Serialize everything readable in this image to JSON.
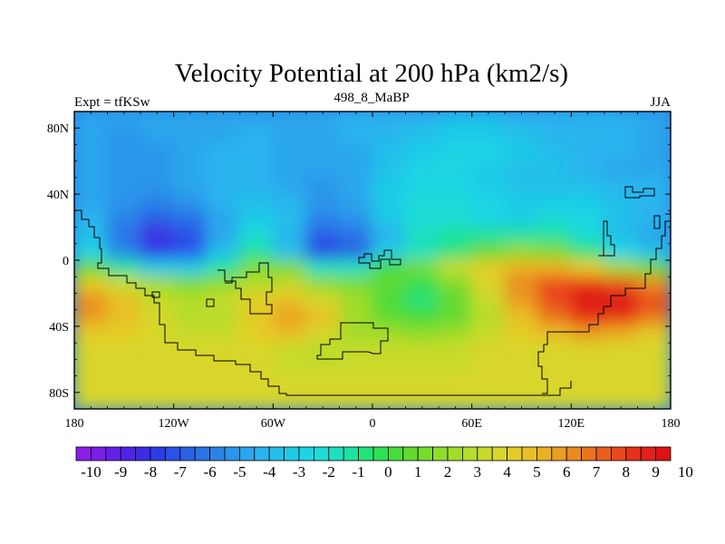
{
  "chart_data": {
    "type": "heatmap",
    "title": "Velocity Potential at 200 hPa (km2/s)",
    "left_label": "Expt = tfKSw",
    "center_label": "498_8_MaBP",
    "right_label": "JJA",
    "x_ticks": [
      "180",
      "120W",
      "60W",
      "0",
      "60E",
      "120E",
      "180"
    ],
    "y_ticks": [
      "80N",
      "40N",
      "0",
      "40S",
      "80S"
    ],
    "x_tick_lon": [
      -180,
      -120,
      -60,
      0,
      60,
      120,
      180
    ],
    "y_tick_lat": [
      80,
      40,
      0,
      -40,
      -80
    ],
    "xlim": [
      -180,
      180
    ],
    "ylim": [
      -90,
      90
    ],
    "colorbar": {
      "levels": [
        -10,
        -9.5,
        -9,
        -8.5,
        -8,
        -7.5,
        -7,
        -6.5,
        -6,
        -5.5,
        -5,
        -4.5,
        -4,
        -3.5,
        -3,
        -2.5,
        -2,
        -1.5,
        -1,
        -0.5,
        0,
        0.5,
        1,
        1.5,
        2,
        2.5,
        3,
        3.5,
        4,
        4.5,
        5,
        5.5,
        6,
        6.5,
        7,
        7.5,
        8,
        8.5,
        9,
        9.5,
        10
      ],
      "labels": [
        "-10",
        "-9",
        "-8",
        "-7",
        "-6",
        "-5",
        "-4",
        "-3",
        "-2",
        "-1",
        "0",
        "1",
        "2",
        "3",
        "4",
        "5",
        "6",
        "7",
        "8",
        "9",
        "10"
      ],
      "colors": [
        "#8b1ee6",
        "#7a1ee8",
        "#6420e8",
        "#4f24e6",
        "#3c2be4",
        "#2d3ce6",
        "#2a51e8",
        "#2a62e6",
        "#2a73e6",
        "#2a84e8",
        "#2a95ea",
        "#2aa6ec",
        "#2ab4ee",
        "#22c0ea",
        "#1ecbe6",
        "#1ed4e4",
        "#1edcd8",
        "#1ee0c0",
        "#1ee2a0",
        "#22e27a",
        "#2ee054",
        "#46dc3a",
        "#62da30",
        "#78dc2e",
        "#8edc2c",
        "#a2dc2c",
        "#b6dc2c",
        "#c8da2c",
        "#d8d62a",
        "#e4cc28",
        "#e8c026",
        "#eab024",
        "#ea9e22",
        "#ea8a20",
        "#ea741e",
        "#ea5e1c",
        "#ea481a",
        "#e63218",
        "#e22018",
        "#dc1216"
      ]
    },
    "field": {
      "lat_centers": [
        85,
        75,
        65,
        55,
        45,
        35,
        25,
        15,
        5,
        -5,
        -15,
        -25,
        -35,
        -45,
        -55,
        -65,
        -75,
        -85
      ],
      "lon_centers": [
        -170,
        -150,
        -130,
        -110,
        -90,
        -70,
        -50,
        -30,
        -10,
        10,
        30,
        50,
        70,
        90,
        110,
        130,
        150,
        170
      ],
      "values": [
        [
          -4.5,
          -4.5,
          -4.5,
          -4.5,
          -4.5,
          -4.5,
          -4.5,
          -4.5,
          -4.0,
          -4.0,
          -4.0,
          -3.5,
          -3.5,
          -4.0,
          -4.0,
          -4.0,
          -4.0,
          -4.5
        ],
        [
          -4.5,
          -5.0,
          -4.5,
          -4.5,
          -4.5,
          -4.0,
          -4.5,
          -4.5,
          -4.0,
          -4.0,
          -3.5,
          -3.0,
          -3.0,
          -3.5,
          -4.0,
          -4.0,
          -4.0,
          -4.5
        ],
        [
          -4.5,
          -5.0,
          -5.0,
          -4.5,
          -4.0,
          -4.0,
          -4.5,
          -4.5,
          -4.5,
          -3.5,
          -3.0,
          -2.5,
          -2.5,
          -3.0,
          -3.5,
          -4.0,
          -4.0,
          -4.5
        ],
        [
          -4.5,
          -5.0,
          -5.0,
          -4.5,
          -4.0,
          -4.0,
          -4.5,
          -4.5,
          -4.5,
          -3.5,
          -2.5,
          -2.5,
          -3.0,
          -3.5,
          -3.5,
          -4.0,
          -4.5,
          -4.5
        ],
        [
          -4.5,
          -5.0,
          -5.0,
          -4.5,
          -4.0,
          -4.0,
          -4.5,
          -5.0,
          -4.5,
          -3.0,
          -2.5,
          -2.5,
          -3.0,
          -3.5,
          -3.5,
          -3.5,
          -4.0,
          -4.0
        ],
        [
          -4.5,
          -5.0,
          -5.5,
          -5.0,
          -4.0,
          -3.5,
          -4.0,
          -5.0,
          -4.5,
          -3.0,
          -2.0,
          -2.0,
          -2.5,
          -3.0,
          -3.0,
          -3.0,
          -3.5,
          -4.0
        ],
        [
          -4.0,
          -5.5,
          -6.5,
          -6.0,
          -4.5,
          -3.0,
          -3.5,
          -5.5,
          -5.0,
          -3.0,
          -2.0,
          -2.0,
          -2.5,
          -3.0,
          -2.0,
          -2.5,
          -3.5,
          -4.0
        ],
        [
          -3.5,
          -6.0,
          -8.0,
          -7.0,
          -4.5,
          -2.0,
          -4.0,
          -6.5,
          -6.0,
          -4.0,
          -1.5,
          -1.0,
          -1.0,
          -1.0,
          -1.0,
          -2.0,
          -3.5,
          -4.5
        ],
        [
          -2.5,
          -5.5,
          -7.5,
          -7.0,
          -3.5,
          -1.0,
          -3.5,
          -7.5,
          -6.5,
          -3.0,
          -1.5,
          -0.5,
          1.0,
          2.0,
          1.5,
          -0.5,
          -2.5,
          -3.5
        ],
        [
          1.0,
          -1.0,
          -3.0,
          -3.0,
          -1.0,
          1.5,
          1.5,
          -1.5,
          -1.5,
          0.5,
          1.5,
          3.5,
          4.5,
          5.5,
          5.5,
          4.5,
          2.5,
          1.0
        ],
        [
          4.5,
          3.5,
          2.5,
          1.5,
          2.0,
          3.0,
          3.5,
          2.0,
          1.5,
          1.0,
          0.0,
          1.5,
          4.0,
          6.5,
          8.0,
          8.5,
          8.0,
          6.5
        ],
        [
          6.5,
          5.0,
          3.5,
          3.0,
          3.5,
          4.5,
          5.0,
          4.0,
          2.5,
          0.5,
          -0.5,
          1.0,
          3.5,
          6.0,
          8.0,
          9.5,
          9.5,
          8.0
        ],
        [
          6.0,
          5.0,
          4.0,
          3.0,
          3.0,
          4.5,
          6.0,
          5.0,
          2.5,
          1.0,
          0.5,
          1.0,
          3.0,
          5.0,
          7.0,
          8.5,
          8.5,
          7.0
        ],
        [
          4.5,
          4.5,
          4.0,
          3.5,
          3.5,
          4.5,
          5.0,
          4.0,
          2.5,
          2.5,
          2.0,
          2.5,
          3.5,
          4.5,
          5.0,
          6.0,
          5.5,
          4.5
        ],
        [
          4.0,
          4.0,
          4.0,
          4.0,
          4.0,
          4.0,
          3.5,
          3.0,
          3.5,
          3.5,
          3.5,
          3.5,
          4.0,
          4.0,
          4.0,
          4.0,
          4.0,
          4.0
        ],
        [
          4.0,
          4.0,
          4.0,
          4.0,
          4.0,
          4.0,
          3.5,
          3.5,
          3.5,
          3.5,
          3.5,
          3.5,
          4.0,
          4.0,
          4.0,
          4.0,
          4.0,
          4.0
        ],
        [
          4.0,
          4.0,
          4.0,
          4.0,
          4.0,
          4.0,
          4.0,
          4.0,
          4.0,
          4.0,
          4.0,
          4.0,
          4.0,
          4.0,
          4.0,
          4.0,
          4.0,
          4.0
        ],
        [
          4.0,
          4.0,
          4.0,
          4.0,
          4.0,
          4.0,
          4.0,
          4.0,
          4.0,
          4.0,
          4.0,
          4.0,
          4.0,
          4.0,
          4.0,
          4.0,
          4.0,
          4.0
        ]
      ]
    }
  }
}
